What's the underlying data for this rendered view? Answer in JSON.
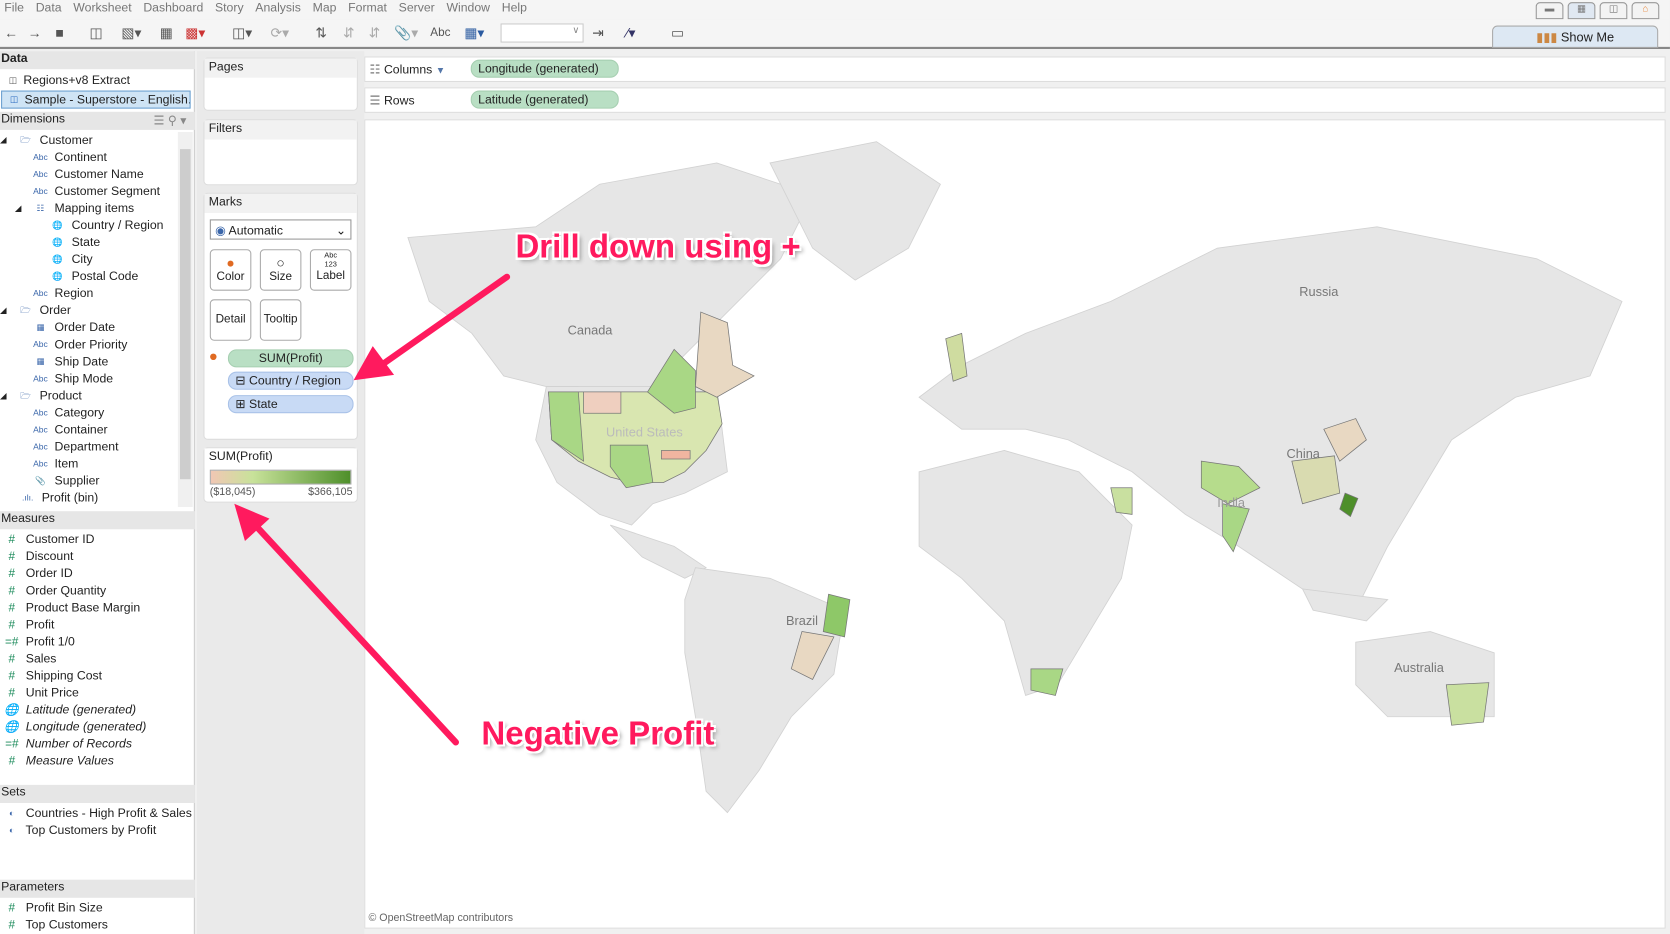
{
  "menu": [
    "File",
    "Data",
    "Worksheet",
    "Dashboard",
    "Story",
    "Analysis",
    "Map",
    "Format",
    "Server",
    "Window",
    "Help"
  ],
  "toolbar": {
    "text_tool": "Abc",
    "show_me": "Show Me"
  },
  "data_pane": {
    "title": "Data",
    "sources": [
      "Regions+v8 Extract",
      "Sample - Superstore - English..."
    ],
    "dimensions_title": "Dimensions",
    "dimensions": [
      {
        "label": "Customer",
        "type": "folder",
        "level": 0
      },
      {
        "label": "Continent",
        "type": "abc",
        "level": 1
      },
      {
        "label": "Customer Name",
        "type": "abc",
        "level": 1
      },
      {
        "label": "Customer Segment",
        "type": "abc",
        "level": 1
      },
      {
        "label": "Mapping items",
        "type": "hierarchy",
        "level": 1
      },
      {
        "label": "Country / Region",
        "type": "geo",
        "level": 2
      },
      {
        "label": "State",
        "type": "geo",
        "level": 2
      },
      {
        "label": "City",
        "type": "geo",
        "level": 2
      },
      {
        "label": "Postal Code",
        "type": "geo",
        "level": 2
      },
      {
        "label": "Region",
        "type": "abc",
        "level": 1
      },
      {
        "label": "Order",
        "type": "folder",
        "level": 0
      },
      {
        "label": "Order Date",
        "type": "date",
        "level": 1
      },
      {
        "label": "Order Priority",
        "type": "abc",
        "level": 1
      },
      {
        "label": "Ship Date",
        "type": "date",
        "level": 1
      },
      {
        "label": "Ship Mode",
        "type": "abc",
        "level": 1
      },
      {
        "label": "Product",
        "type": "folder",
        "level": 0
      },
      {
        "label": "Category",
        "type": "abc",
        "level": 1
      },
      {
        "label": "Container",
        "type": "abc",
        "level": 1
      },
      {
        "label": "Department",
        "type": "abc",
        "level": 1
      },
      {
        "label": "Item",
        "type": "abc",
        "level": 1
      },
      {
        "label": "Supplier",
        "type": "clip",
        "level": 1
      },
      {
        "label": "Profit (bin)",
        "type": "bin",
        "level": 0
      }
    ],
    "measures_title": "Measures",
    "measures": [
      {
        "label": "Customer ID",
        "italic": false,
        "type": "num"
      },
      {
        "label": "Discount",
        "italic": false,
        "type": "num"
      },
      {
        "label": "Order ID",
        "italic": false,
        "type": "num"
      },
      {
        "label": "Order Quantity",
        "italic": false,
        "type": "num"
      },
      {
        "label": "Product Base Margin",
        "italic": false,
        "type": "num"
      },
      {
        "label": "Profit",
        "italic": false,
        "type": "num"
      },
      {
        "label": "Profit 1/0",
        "italic": false,
        "type": "calc"
      },
      {
        "label": "Sales",
        "italic": false,
        "type": "num"
      },
      {
        "label": "Shipping Cost",
        "italic": false,
        "type": "num"
      },
      {
        "label": "Unit Price",
        "italic": false,
        "type": "num"
      },
      {
        "label": "Latitude (generated)",
        "italic": true,
        "type": "geo"
      },
      {
        "label": "Longitude (generated)",
        "italic": true,
        "type": "geo"
      },
      {
        "label": "Number of Records",
        "italic": true,
        "type": "calc"
      },
      {
        "label": "Measure Values",
        "italic": true,
        "type": "num"
      }
    ],
    "sets_title": "Sets",
    "sets": [
      "Countries - High Profit & Sales",
      "Top Customers by Profit"
    ],
    "parameters_title": "Parameters",
    "parameters": [
      "Profit Bin Size",
      "Top Customers"
    ]
  },
  "cards": {
    "pages": "Pages",
    "filters": "Filters",
    "marks": "Marks",
    "mark_type": "Automatic",
    "color": "Color",
    "size": "Size",
    "label": "Label",
    "label_icon": "Abc 123",
    "detail": "Detail",
    "tooltip": "Tooltip",
    "pills": [
      "SUM(Profit)",
      "Country / Region",
      "State"
    ]
  },
  "legend": {
    "title": "SUM(Profit)",
    "min": "($18,045)",
    "max": "$366,105",
    "colors": [
      "#f1c7b4",
      "#c8e29a",
      "#4e8f2a"
    ]
  },
  "shelves": {
    "columns_label": "Columns",
    "columns_pill": "Longitude (generated)",
    "rows_label": "Rows",
    "rows_pill": "Latitude (generated)"
  },
  "map": {
    "labels": [
      "Canada",
      "United States",
      "Russia",
      "China",
      "India",
      "Brazil",
      "Australia"
    ],
    "attribution": "© OpenStreetMap contributors"
  },
  "annotations": {
    "drill": "Drill down using +",
    "negative": "Negative Profit",
    "color": "#ff1a5e"
  }
}
